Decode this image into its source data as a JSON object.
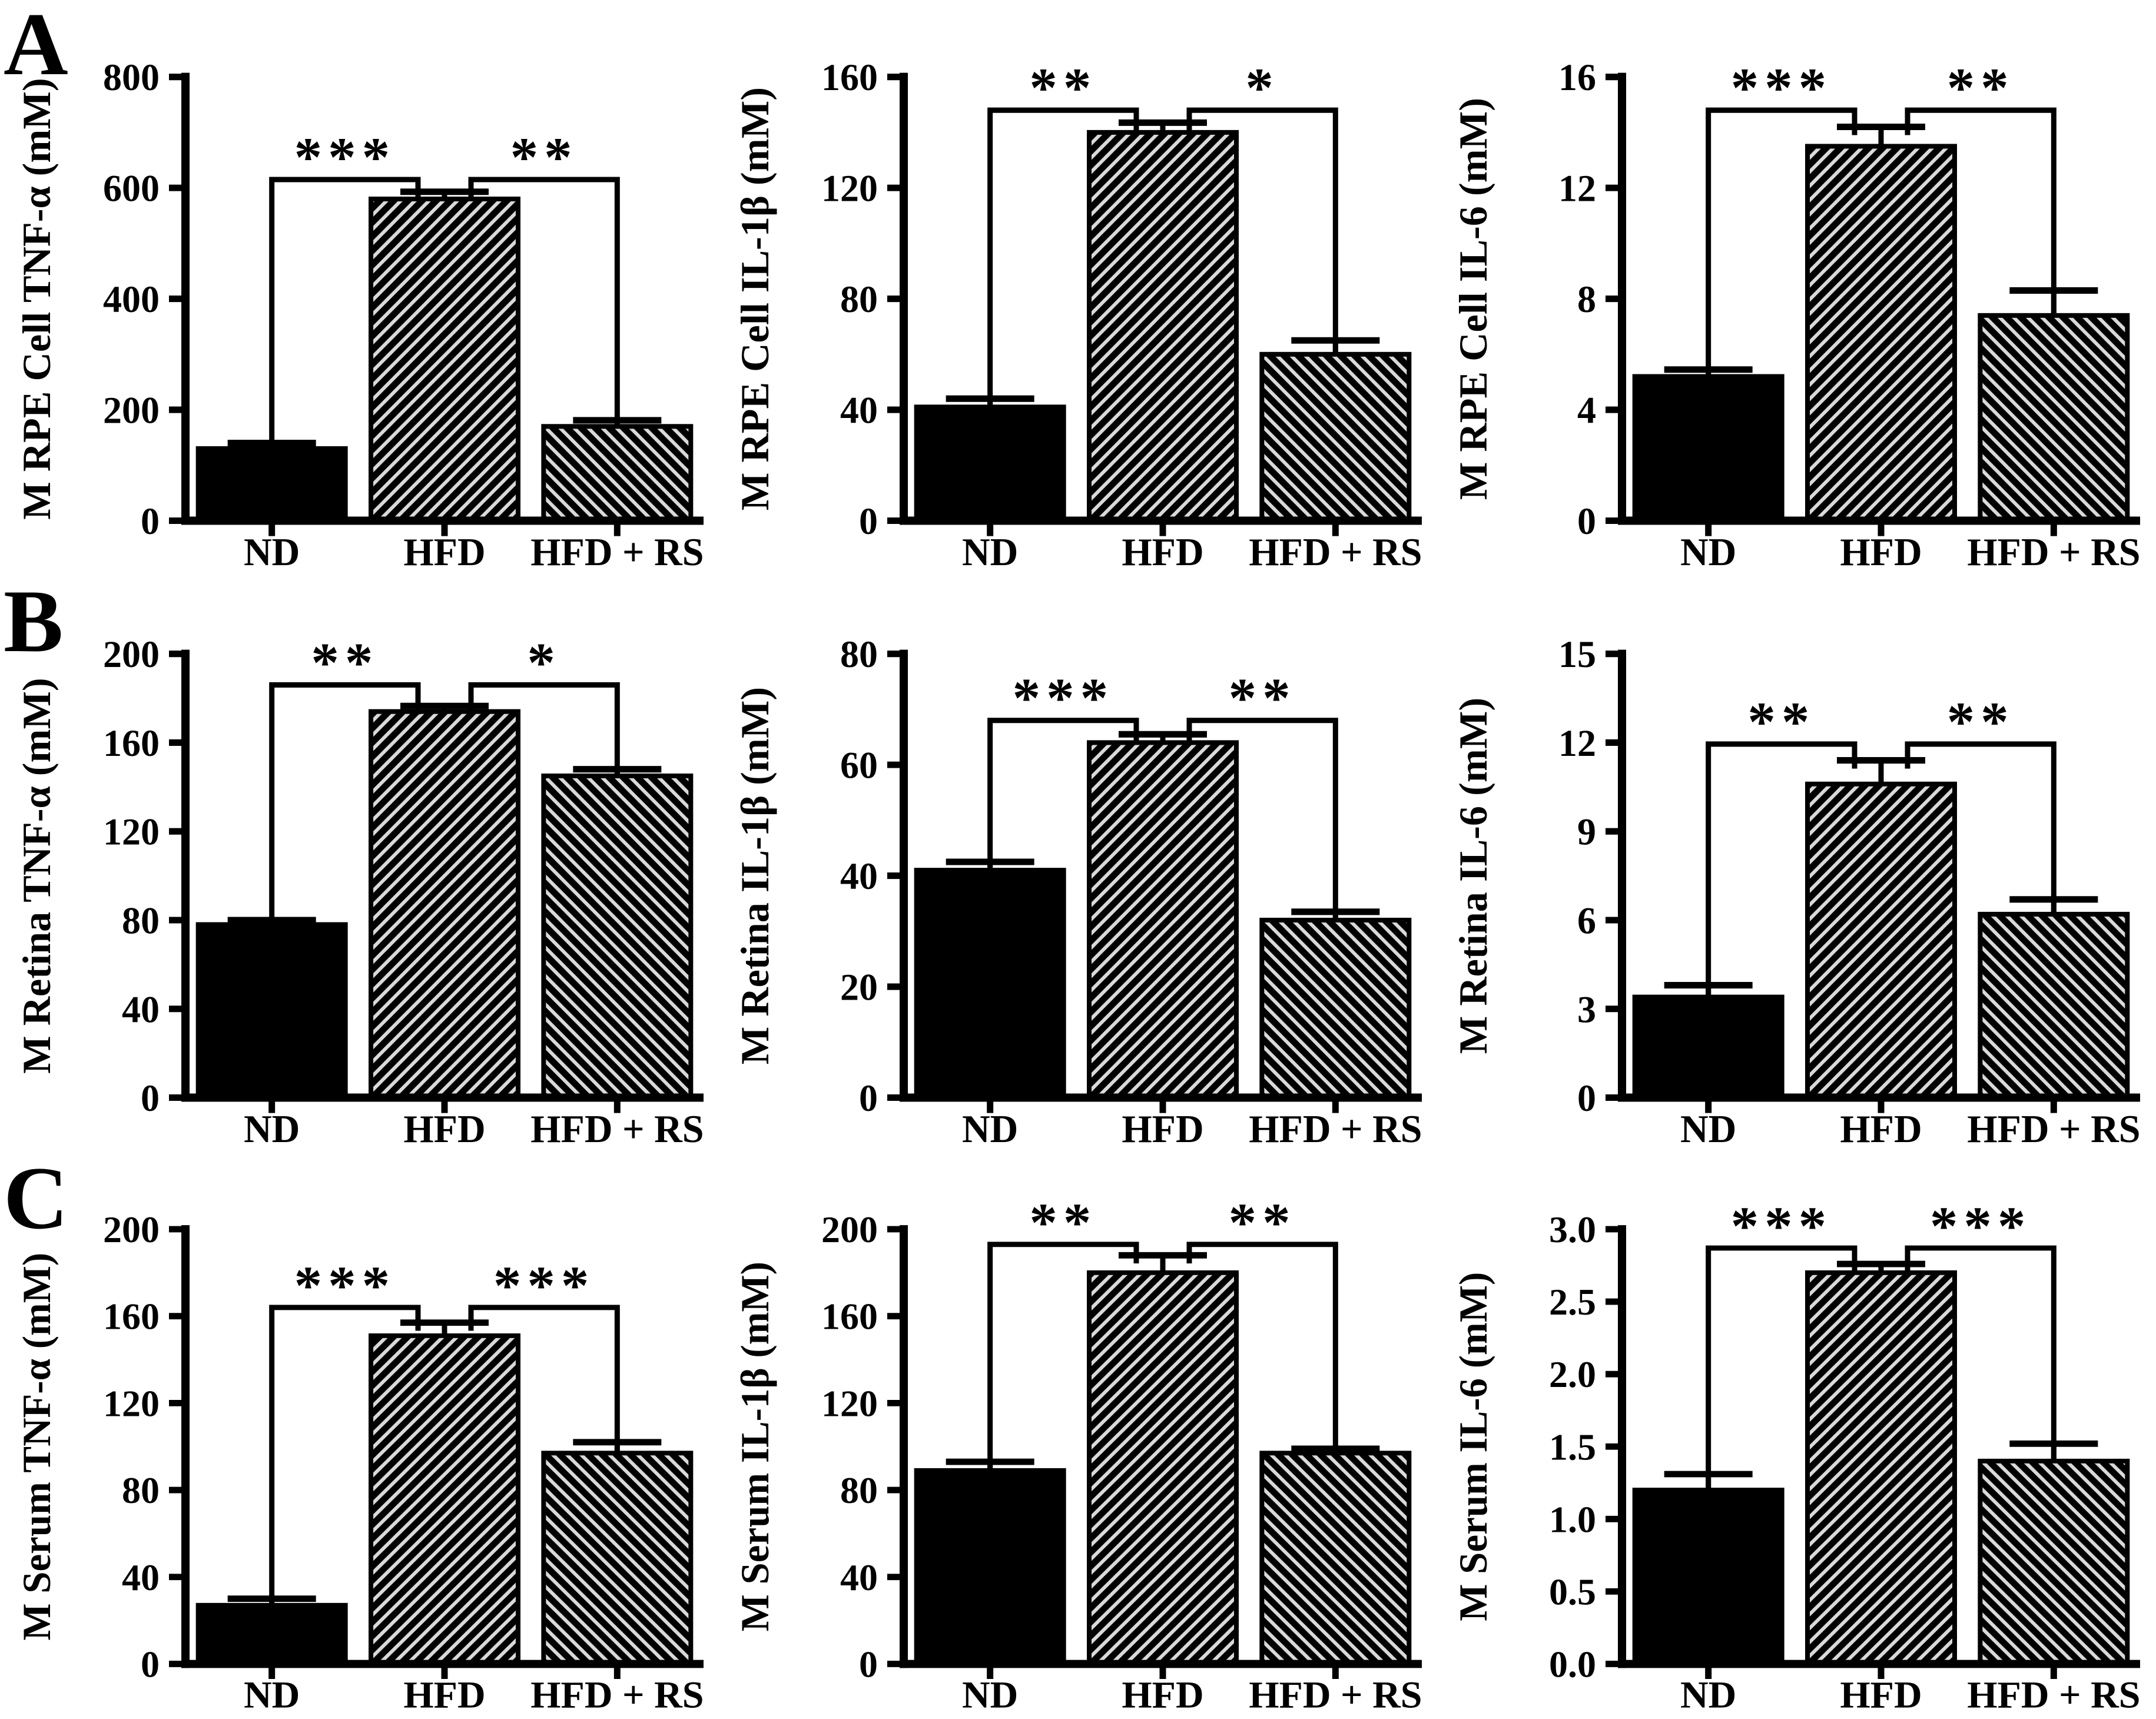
{
  "panels": [
    {
      "letter": "A"
    },
    {
      "letter": "B"
    },
    {
      "letter": "C"
    }
  ],
  "colors": {
    "foreground": "#000000",
    "background": "#ffffff",
    "hatch_background": "#d9d9d9"
  },
  "chart_data": [
    {
      "type": "bar",
      "panel": "A",
      "title": "",
      "xlabel": "",
      "ylabel": "M RPE Cell TNF-α (mM)",
      "categories": [
        "ND",
        "HFD",
        "HFD + RS"
      ],
      "values": [
        130,
        580,
        170
      ],
      "errors_up": [
        10,
        13,
        11
      ],
      "ylim": [
        0,
        800
      ],
      "ytick_values": [
        0,
        200,
        400,
        600,
        800
      ],
      "ytick_labels": [
        "0",
        "200",
        "400",
        "600",
        "800"
      ],
      "bar_styles": [
        "solid-black",
        "hatch-diagonal-up",
        "hatch-diagonal-down"
      ],
      "grid": false,
      "legend": "none",
      "significance": [
        {
          "between": [
            "ND",
            "HFD"
          ],
          "stars": "***",
          "bracket_y": 615
        },
        {
          "between": [
            "HFD",
            "HFD + RS"
          ],
          "stars": "**",
          "bracket_y": 615
        }
      ]
    },
    {
      "type": "bar",
      "panel": "A",
      "title": "",
      "xlabel": "",
      "ylabel": "M RPE Cell IL-1β (mM)",
      "categories": [
        "ND",
        "HFD",
        "HFD + RS"
      ],
      "values": [
        41,
        140,
        60
      ],
      "errors_up": [
        3,
        3.5,
        5
      ],
      "ylim": [
        0,
        160
      ],
      "ytick_values": [
        0,
        40,
        80,
        120,
        160
      ],
      "ytick_labels": [
        "0",
        "40",
        "80",
        "120",
        "160"
      ],
      "bar_styles": [
        "solid-black",
        "hatch-diagonal-up",
        "hatch-diagonal-down"
      ],
      "grid": false,
      "legend": "none",
      "significance": [
        {
          "between": [
            "ND",
            "HFD"
          ],
          "stars": "**",
          "bracket_y": 148
        },
        {
          "between": [
            "HFD",
            "HFD + RS"
          ],
          "stars": "*",
          "bracket_y": 148
        }
      ]
    },
    {
      "type": "bar",
      "panel": "A",
      "title": "",
      "xlabel": "",
      "ylabel": "M RPE Cell IL-6 (mM)",
      "categories": [
        "ND",
        "HFD",
        "HFD + RS"
      ],
      "values": [
        5.2,
        13.5,
        7.4
      ],
      "errors_up": [
        0.25,
        0.7,
        0.9
      ],
      "ylim": [
        0,
        16
      ],
      "ytick_values": [
        0,
        4,
        8,
        12,
        16
      ],
      "ytick_labels": [
        "0",
        "4",
        "8",
        "12",
        "16"
      ],
      "bar_styles": [
        "solid-black",
        "hatch-diagonal-up",
        "hatch-diagonal-down"
      ],
      "grid": false,
      "legend": "none",
      "significance": [
        {
          "between": [
            "ND",
            "HFD"
          ],
          "stars": "***",
          "bracket_y": 14.8
        },
        {
          "between": [
            "HFD",
            "HFD + RS"
          ],
          "stars": "**",
          "bracket_y": 14.8
        }
      ]
    },
    {
      "type": "bar",
      "panel": "B",
      "title": "",
      "xlabel": "",
      "ylabel": "M Retina TNF-α (mM)",
      "categories": [
        "ND",
        "HFD",
        "HFD + RS"
      ],
      "values": [
        78,
        174,
        145
      ],
      "errors_up": [
        2,
        2.5,
        3
      ],
      "ylim": [
        0,
        200
      ],
      "ytick_values": [
        0,
        40,
        80,
        120,
        160,
        200
      ],
      "ytick_labels": [
        "0",
        "40",
        "80",
        "120",
        "160",
        "200"
      ],
      "bar_styles": [
        "solid-black",
        "hatch-diagonal-up",
        "hatch-diagonal-down"
      ],
      "grid": false,
      "legend": "none",
      "significance": [
        {
          "between": [
            "ND",
            "HFD"
          ],
          "stars": "**",
          "bracket_y": 186
        },
        {
          "between": [
            "HFD",
            "HFD + RS"
          ],
          "stars": "*",
          "bracket_y": 186
        }
      ]
    },
    {
      "type": "bar",
      "panel": "B",
      "title": "",
      "xlabel": "",
      "ylabel": "M Retina IL-1β (mM)",
      "categories": [
        "ND",
        "HFD",
        "HFD + RS"
      ],
      "values": [
        41,
        64,
        32
      ],
      "errors_up": [
        1.5,
        1.5,
        1.5
      ],
      "ylim": [
        0,
        80
      ],
      "ytick_values": [
        0,
        20,
        40,
        60,
        80
      ],
      "ytick_labels": [
        "0",
        "20",
        "40",
        "60",
        "80"
      ],
      "bar_styles": [
        "solid-black",
        "hatch-diagonal-up",
        "hatch-diagonal-down"
      ],
      "grid": false,
      "legend": "none",
      "significance": [
        {
          "between": [
            "ND",
            "HFD"
          ],
          "stars": "***",
          "bracket_y": 68
        },
        {
          "between": [
            "HFD",
            "HFD + RS"
          ],
          "stars": "**",
          "bracket_y": 68
        }
      ]
    },
    {
      "type": "bar",
      "panel": "B",
      "title": "",
      "xlabel": "",
      "ylabel": "M Retina IL-6 (mM)",
      "categories": [
        "ND",
        "HFD",
        "HFD + RS"
      ],
      "values": [
        3.4,
        10.6,
        6.2
      ],
      "errors_up": [
        0.4,
        0.8,
        0.5
      ],
      "ylim": [
        0,
        15
      ],
      "ytick_values": [
        0,
        3,
        6,
        9,
        12,
        15
      ],
      "ytick_labels": [
        "0",
        "3",
        "6",
        "9",
        "12",
        "15"
      ],
      "bar_styles": [
        "solid-black",
        "hatch-diagonal-up",
        "hatch-diagonal-down"
      ],
      "grid": false,
      "legend": "none",
      "significance": [
        {
          "between": [
            "ND",
            "HFD"
          ],
          "stars": "**",
          "bracket_y": 11.95
        },
        {
          "between": [
            "HFD",
            "HFD + RS"
          ],
          "stars": "**",
          "bracket_y": 11.95
        }
      ]
    },
    {
      "type": "bar",
      "panel": "C",
      "title": "",
      "xlabel": "",
      "ylabel": "M Serum TNF-α (mM)",
      "categories": [
        "ND",
        "HFD",
        "HFD + RS"
      ],
      "values": [
        27,
        151,
        97
      ],
      "errors_up": [
        3,
        6,
        5
      ],
      "ylim": [
        0,
        200
      ],
      "ytick_values": [
        0,
        40,
        80,
        120,
        160,
        200
      ],
      "ytick_labels": [
        "0",
        "40",
        "80",
        "120",
        "160",
        "200"
      ],
      "bar_styles": [
        "solid-black",
        "hatch-diagonal-up",
        "hatch-diagonal-down"
      ],
      "grid": false,
      "legend": "none",
      "significance": [
        {
          "between": [
            "ND",
            "HFD"
          ],
          "stars": "***",
          "bracket_y": 164
        },
        {
          "between": [
            "HFD",
            "HFD + RS"
          ],
          "stars": "***",
          "bracket_y": 164
        }
      ]
    },
    {
      "type": "bar",
      "panel": "C",
      "title": "",
      "xlabel": "",
      "ylabel": "M Serum IL-1β (mM)",
      "categories": [
        "ND",
        "HFD",
        "HFD + RS"
      ],
      "values": [
        89,
        180,
        97
      ],
      "errors_up": [
        4,
        8,
        2
      ],
      "ylim": [
        0,
        200
      ],
      "ytick_values": [
        0,
        40,
        80,
        120,
        160,
        200
      ],
      "ytick_labels": [
        "0",
        "40",
        "80",
        "120",
        "160",
        "200"
      ],
      "bar_styles": [
        "solid-black",
        "hatch-diagonal-up",
        "hatch-diagonal-down"
      ],
      "grid": false,
      "legend": "none",
      "significance": [
        {
          "between": [
            "ND",
            "HFD"
          ],
          "stars": "**",
          "bracket_y": 193
        },
        {
          "between": [
            "HFD",
            "HFD + RS"
          ],
          "stars": "**",
          "bracket_y": 193
        }
      ]
    },
    {
      "type": "bar",
      "panel": "C",
      "title": "",
      "xlabel": "",
      "ylabel": "M Serum IL-6 (mM)",
      "categories": [
        "ND",
        "HFD",
        "HFD + RS"
      ],
      "values": [
        1.2,
        2.7,
        1.4
      ],
      "errors_up": [
        0.11,
        0.06,
        0.12
      ],
      "ylim": [
        0,
        3.0
      ],
      "ytick_values": [
        0,
        0.5,
        1.0,
        1.5,
        2.0,
        2.5,
        3.0
      ],
      "ytick_labels": [
        "0.0",
        "0.5",
        "1.0",
        "1.5",
        "2.0",
        "2.5",
        "3.0"
      ],
      "bar_styles": [
        "solid-black",
        "hatch-diagonal-up",
        "hatch-diagonal-down"
      ],
      "grid": false,
      "legend": "none",
      "significance": [
        {
          "between": [
            "ND",
            "HFD"
          ],
          "stars": "***",
          "bracket_y": 2.87
        },
        {
          "between": [
            "HFD",
            "HFD + RS"
          ],
          "stars": "***",
          "bracket_y": 2.87
        }
      ]
    }
  ]
}
